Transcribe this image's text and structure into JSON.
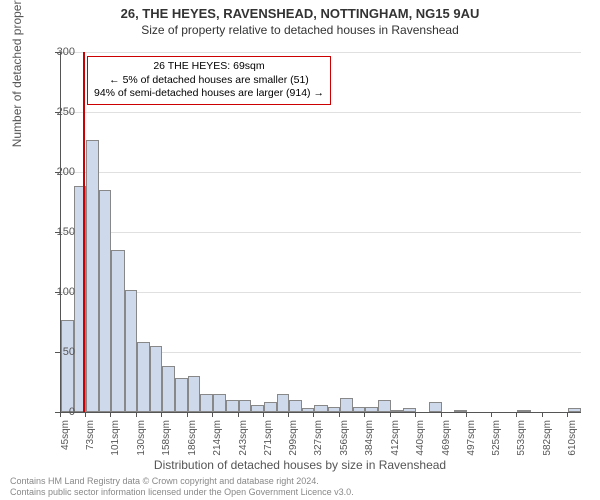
{
  "title_main": "26, THE HEYES, RAVENSHEAD, NOTTINGHAM, NG15 9AU",
  "title_sub": "Size of property relative to detached houses in Ravenshead",
  "y_axis_label": "Number of detached properties",
  "x_axis_label": "Distribution of detached houses by size in Ravenshead",
  "chart": {
    "type": "histogram",
    "ylim": [
      0,
      300
    ],
    "ytick_step": 50,
    "y_ticks": [
      0,
      50,
      100,
      150,
      200,
      250,
      300
    ],
    "x_min": 45,
    "x_max": 624,
    "x_ticks": [
      45,
      73,
      101,
      130,
      158,
      186,
      214,
      243,
      271,
      299,
      327,
      356,
      384,
      412,
      440,
      469,
      497,
      525,
      553,
      582,
      610
    ],
    "x_tick_suffix": "sqm",
    "bins": [
      {
        "start": 45,
        "end": 59,
        "count": 77
      },
      {
        "start": 59,
        "end": 73,
        "count": 188
      },
      {
        "start": 73,
        "end": 87,
        "count": 227
      },
      {
        "start": 87,
        "end": 101,
        "count": 185
      },
      {
        "start": 101,
        "end": 116,
        "count": 135
      },
      {
        "start": 116,
        "end": 130,
        "count": 102
      },
      {
        "start": 130,
        "end": 144,
        "count": 58
      },
      {
        "start": 144,
        "end": 158,
        "count": 55
      },
      {
        "start": 158,
        "end": 172,
        "count": 38
      },
      {
        "start": 172,
        "end": 186,
        "count": 28
      },
      {
        "start": 186,
        "end": 200,
        "count": 30
      },
      {
        "start": 200,
        "end": 214,
        "count": 15
      },
      {
        "start": 214,
        "end": 229,
        "count": 15
      },
      {
        "start": 229,
        "end": 243,
        "count": 10
      },
      {
        "start": 243,
        "end": 257,
        "count": 10
      },
      {
        "start": 257,
        "end": 271,
        "count": 6
      },
      {
        "start": 271,
        "end": 285,
        "count": 8
      },
      {
        "start": 285,
        "end": 299,
        "count": 15
      },
      {
        "start": 299,
        "end": 313,
        "count": 10
      },
      {
        "start": 313,
        "end": 327,
        "count": 3
      },
      {
        "start": 327,
        "end": 342,
        "count": 6
      },
      {
        "start": 342,
        "end": 356,
        "count": 4
      },
      {
        "start": 356,
        "end": 370,
        "count": 12
      },
      {
        "start": 370,
        "end": 384,
        "count": 4
      },
      {
        "start": 384,
        "end": 398,
        "count": 4
      },
      {
        "start": 398,
        "end": 412,
        "count": 10
      },
      {
        "start": 412,
        "end": 426,
        "count": 2
      },
      {
        "start": 426,
        "end": 440,
        "count": 3
      },
      {
        "start": 440,
        "end": 455,
        "count": 0
      },
      {
        "start": 455,
        "end": 469,
        "count": 8
      },
      {
        "start": 469,
        "end": 483,
        "count": 0
      },
      {
        "start": 483,
        "end": 497,
        "count": 2
      },
      {
        "start": 497,
        "end": 511,
        "count": 0
      },
      {
        "start": 511,
        "end": 525,
        "count": 0
      },
      {
        "start": 525,
        "end": 539,
        "count": 0
      },
      {
        "start": 539,
        "end": 553,
        "count": 0
      },
      {
        "start": 553,
        "end": 568,
        "count": 2
      },
      {
        "start": 568,
        "end": 582,
        "count": 0
      },
      {
        "start": 582,
        "end": 596,
        "count": 0
      },
      {
        "start": 596,
        "end": 610,
        "count": 0
      },
      {
        "start": 610,
        "end": 624,
        "count": 3
      }
    ],
    "bar_fill": "#cfd9ec",
    "bar_border": "#888888",
    "ref_line_x": 69,
    "ref_line_color": "#cc0000",
    "background_color": "#ffffff",
    "grid_color": "#e0e0e0"
  },
  "annotation": {
    "line1": "26 THE HEYES: 69sqm",
    "line2": "← 5% of detached houses are smaller (51)",
    "line3": "94% of semi-detached houses are larger (914) →",
    "border_color": "#cc0000"
  },
  "footer_line1": "Contains HM Land Registry data © Crown copyright and database right 2024.",
  "footer_line2": "Contains public sector information licensed under the Open Government Licence v3.0."
}
